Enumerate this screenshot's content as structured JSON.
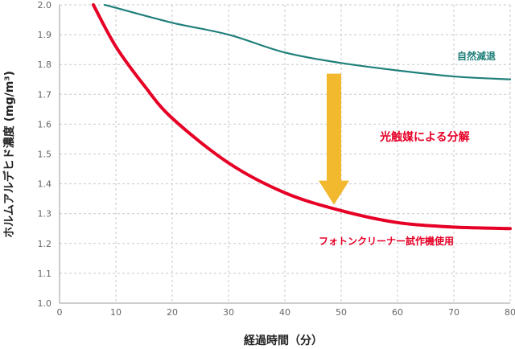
{
  "chart_data": {
    "type": "line",
    "xlabel": "経過時間（分）",
    "ylabel": "ホルムアルデヒド濃度 (mg/m³)",
    "xlim": [
      0,
      80
    ],
    "ylim": [
      1.0,
      2.0
    ],
    "x_ticks": [
      "0",
      "10",
      "20",
      "30",
      "40",
      "50",
      "60",
      "70",
      "80"
    ],
    "y_ticks": [
      "1.0",
      "1.1",
      "1.2",
      "1.3",
      "1.4",
      "1.5",
      "1.6",
      "1.7",
      "1.8",
      "1.9",
      "2.0"
    ],
    "grid": true,
    "series": [
      {
        "name": "自然減退",
        "color": "#1f7f7a",
        "points": [
          [
            8,
            2.0
          ],
          [
            10,
            1.99
          ],
          [
            20,
            1.94
          ],
          [
            30,
            1.9
          ],
          [
            40,
            1.84
          ],
          [
            50,
            1.805
          ],
          [
            60,
            1.78
          ],
          [
            70,
            1.76
          ],
          [
            80,
            1.75
          ]
        ]
      },
      {
        "name": "フォトンクリーナー試作機使用",
        "color": "#e60026",
        "points": [
          [
            6,
            2.0
          ],
          [
            10,
            1.86
          ],
          [
            15,
            1.73
          ],
          [
            20,
            1.62
          ],
          [
            30,
            1.47
          ],
          [
            40,
            1.37
          ],
          [
            50,
            1.31
          ],
          [
            60,
            1.27
          ],
          [
            70,
            1.255
          ],
          [
            80,
            1.25
          ]
        ]
      }
    ],
    "annotations": {
      "photocatalysis_label": "光触媒による分解",
      "arrow_from": [
        50,
        1.78
      ],
      "arrow_to": [
        50,
        1.33
      ],
      "arrow_color": "#f2b82e"
    }
  }
}
